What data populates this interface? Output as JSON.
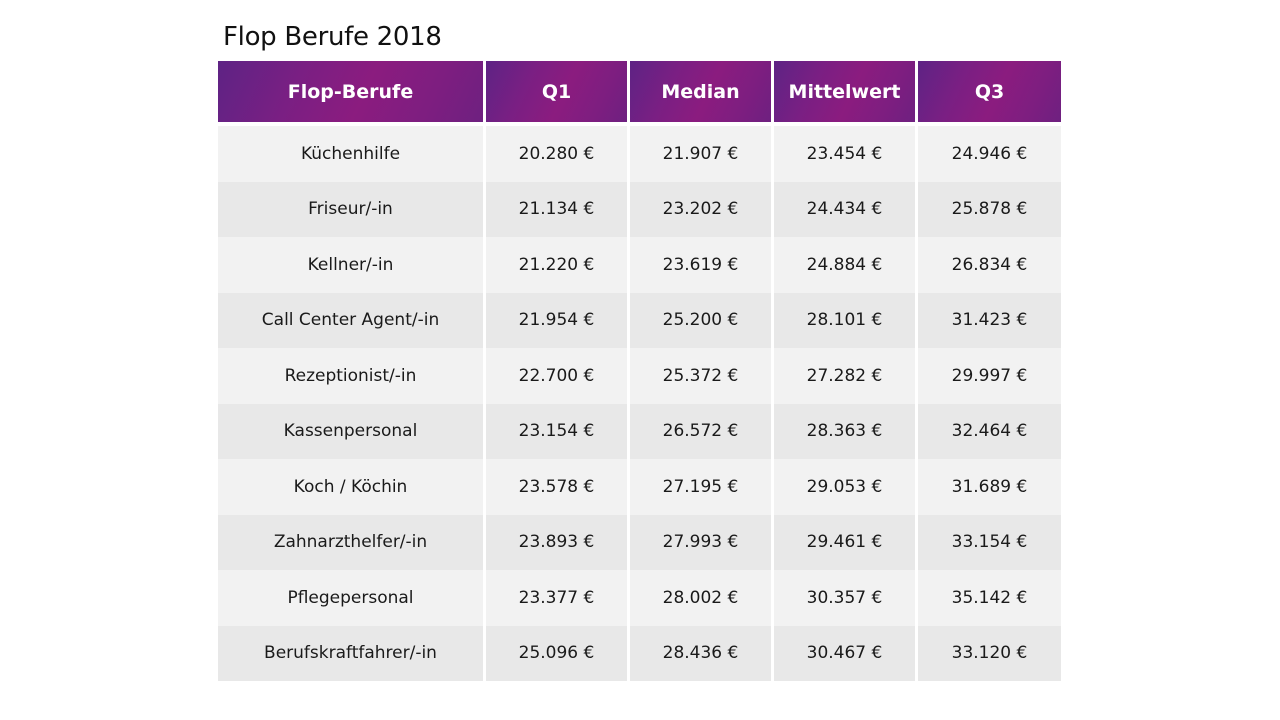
{
  "title": "Flop Berufe 2018",
  "table": {
    "headers": [
      "Flop-Berufe",
      "Q1",
      "Median",
      "Mittelwert",
      "Q3"
    ],
    "rows": [
      [
        "Küchenhilfe",
        "20.280 €",
        "21.907 €",
        "23.454 €",
        "24.946 €"
      ],
      [
        "Friseur/-in",
        "21.134 €",
        "23.202 €",
        "24.434 €",
        "25.878 €"
      ],
      [
        "Kellner/-in",
        "21.220 €",
        "23.619 €",
        "24.884 €",
        "26.834 €"
      ],
      [
        "Call Center Agent/-in",
        "21.954 €",
        "25.200 €",
        "28.101 €",
        "31.423 €"
      ],
      [
        "Rezeptionist/-in",
        "22.700 €",
        "25.372 €",
        "27.282 €",
        "29.997 €"
      ],
      [
        "Kassenpersonal",
        "23.154 €",
        "26.572 €",
        "28.363 €",
        "32.464 €"
      ],
      [
        "Koch / Köchin",
        "23.578 €",
        "27.195 €",
        "29.053 €",
        "31.689 €"
      ],
      [
        "Zahnarzthelfer/-in",
        "23.893 €",
        "27.993 €",
        "29.461 €",
        "33.154 €"
      ],
      [
        "Pflegepersonal",
        "23.377 €",
        "28.002 €",
        "30.357 €",
        "35.142 €"
      ],
      [
        "Berufskraftfahrer/-in",
        "25.096 €",
        "28.436 €",
        "30.467 €",
        "33.120 €"
      ]
    ]
  },
  "colors": {
    "header_bg": "#7a1f83",
    "header_text": "#ffffff",
    "row_light": "#f2f2f2",
    "row_dark": "#e8e8e8"
  }
}
